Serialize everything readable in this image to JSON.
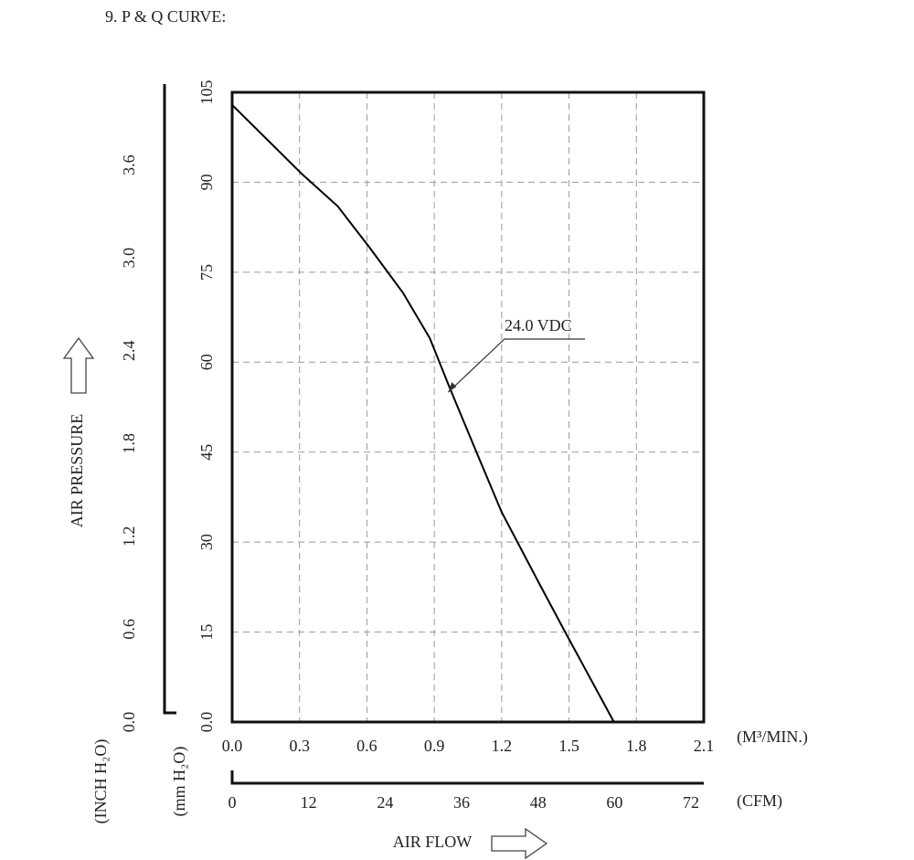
{
  "chart_data": {
    "type": "line",
    "title": "9. P & Q CURVE:",
    "x": [
      0,
      0.31,
      0.47,
      0.61,
      0.76,
      0.88,
      0.97,
      1.08,
      1.2,
      1.37,
      1.49,
      1.7
    ],
    "series": [
      {
        "name": "24.0 VDC",
        "color": "#000000",
        "values": [
          102.9,
          91.4,
          86,
          79.2,
          71.6,
          64,
          55.6,
          45.7,
          35,
          22.9,
          14.5,
          0
        ]
      }
    ],
    "xlim": [
      0,
      2.1
    ],
    "xticks": [
      {
        "value": 0,
        "label": "0.0"
      },
      0.3,
      0.6,
      0.9,
      1.2,
      1.5,
      1.8,
      2.1
    ],
    "x2lim": [
      0,
      74
    ],
    "x2ticks": [
      0,
      12,
      24,
      36,
      48,
      60,
      72
    ],
    "ylim": [
      0,
      105
    ],
    "yticks": [
      {
        "value": 0,
        "label": "0.0"
      },
      15,
      30,
      45,
      60,
      75,
      90,
      105
    ],
    "y2lim": [
      0,
      4.07
    ],
    "y2ticks": [
      {
        "value": 0,
        "label": "0.0"
      },
      0.6,
      1.2,
      1.8,
      2.4,
      {
        "value": 3,
        "label": "3.0"
      },
      3.6
    ],
    "xlabel": "AIR FLOW",
    "ylabel": "AIR PRESSURE",
    "x_unit": "(M³/MIN.)",
    "x2_unit": "(CFM)",
    "y_unit": "(mm H₂O)",
    "y2_unit": "(INCH H₂O)",
    "grid": true
  }
}
